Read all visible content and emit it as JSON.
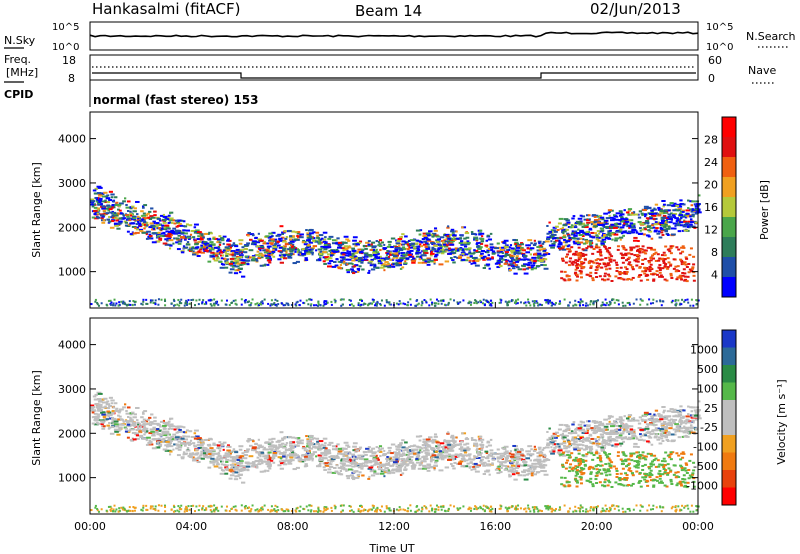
{
  "header": {
    "station": "Hankasalmi (fitACF)",
    "beam": "Beam 14",
    "date": "02/Jun/2013"
  },
  "noise_panel": {
    "left_label": "N.Sky",
    "right_label": "N.Search",
    "left_ticks": [
      "10^5",
      "10^0"
    ],
    "right_ticks": [
      "10^5",
      "10^0"
    ]
  },
  "freq_panel": {
    "left_label_1": "Freq.",
    "left_label_2": "[MHz]",
    "left_ticks": [
      "18",
      "8"
    ],
    "right_label": "Nave",
    "right_ticks": [
      "60",
      "0"
    ],
    "cpid_label": "CPID"
  },
  "cpid_text": "normal (fast stereo) 153",
  "colors": {
    "power_scale": [
      "#0000ff",
      "#1f4fa8",
      "#2e7d5a",
      "#4aa64a",
      "#b5c93a",
      "#f0a020",
      "#f06010",
      "#e01010",
      "#ff0000"
    ],
    "velocity_scale": [
      "#ff0000",
      "#e8420c",
      "#f07a10",
      "#f0a020",
      "#bfbfbf",
      "#bfbfbf",
      "#55b849",
      "#2a8b45",
      "#2c6a98",
      "#1a38c8"
    ]
  },
  "chart_data": [
    {
      "type": "heatmap",
      "ylabel": "Slant Range [km]",
      "yticks": [
        "1000",
        "2000",
        "3000",
        "4000"
      ],
      "colorbar_title": "Power [dB]",
      "colorbar_ticks": [
        "4",
        "8",
        "12",
        "16",
        "20",
        "24",
        "28"
      ]
    },
    {
      "type": "heatmap",
      "ylabel": "Slant Range [km]",
      "yticks": [
        "1000",
        "2000",
        "3000",
        "4000"
      ],
      "colorbar_title": "Velocity [m s⁻¹]",
      "colorbar_ticks": [
        "1000",
        "500",
        "100",
        "25",
        "-25",
        "-100",
        "-500",
        "-1000"
      ],
      "xlabel": "Time UT",
      "xticks": [
        "00:00",
        "04:00",
        "08:00",
        "12:00",
        "16:00",
        "20:00",
        "00:00"
      ]
    }
  ]
}
